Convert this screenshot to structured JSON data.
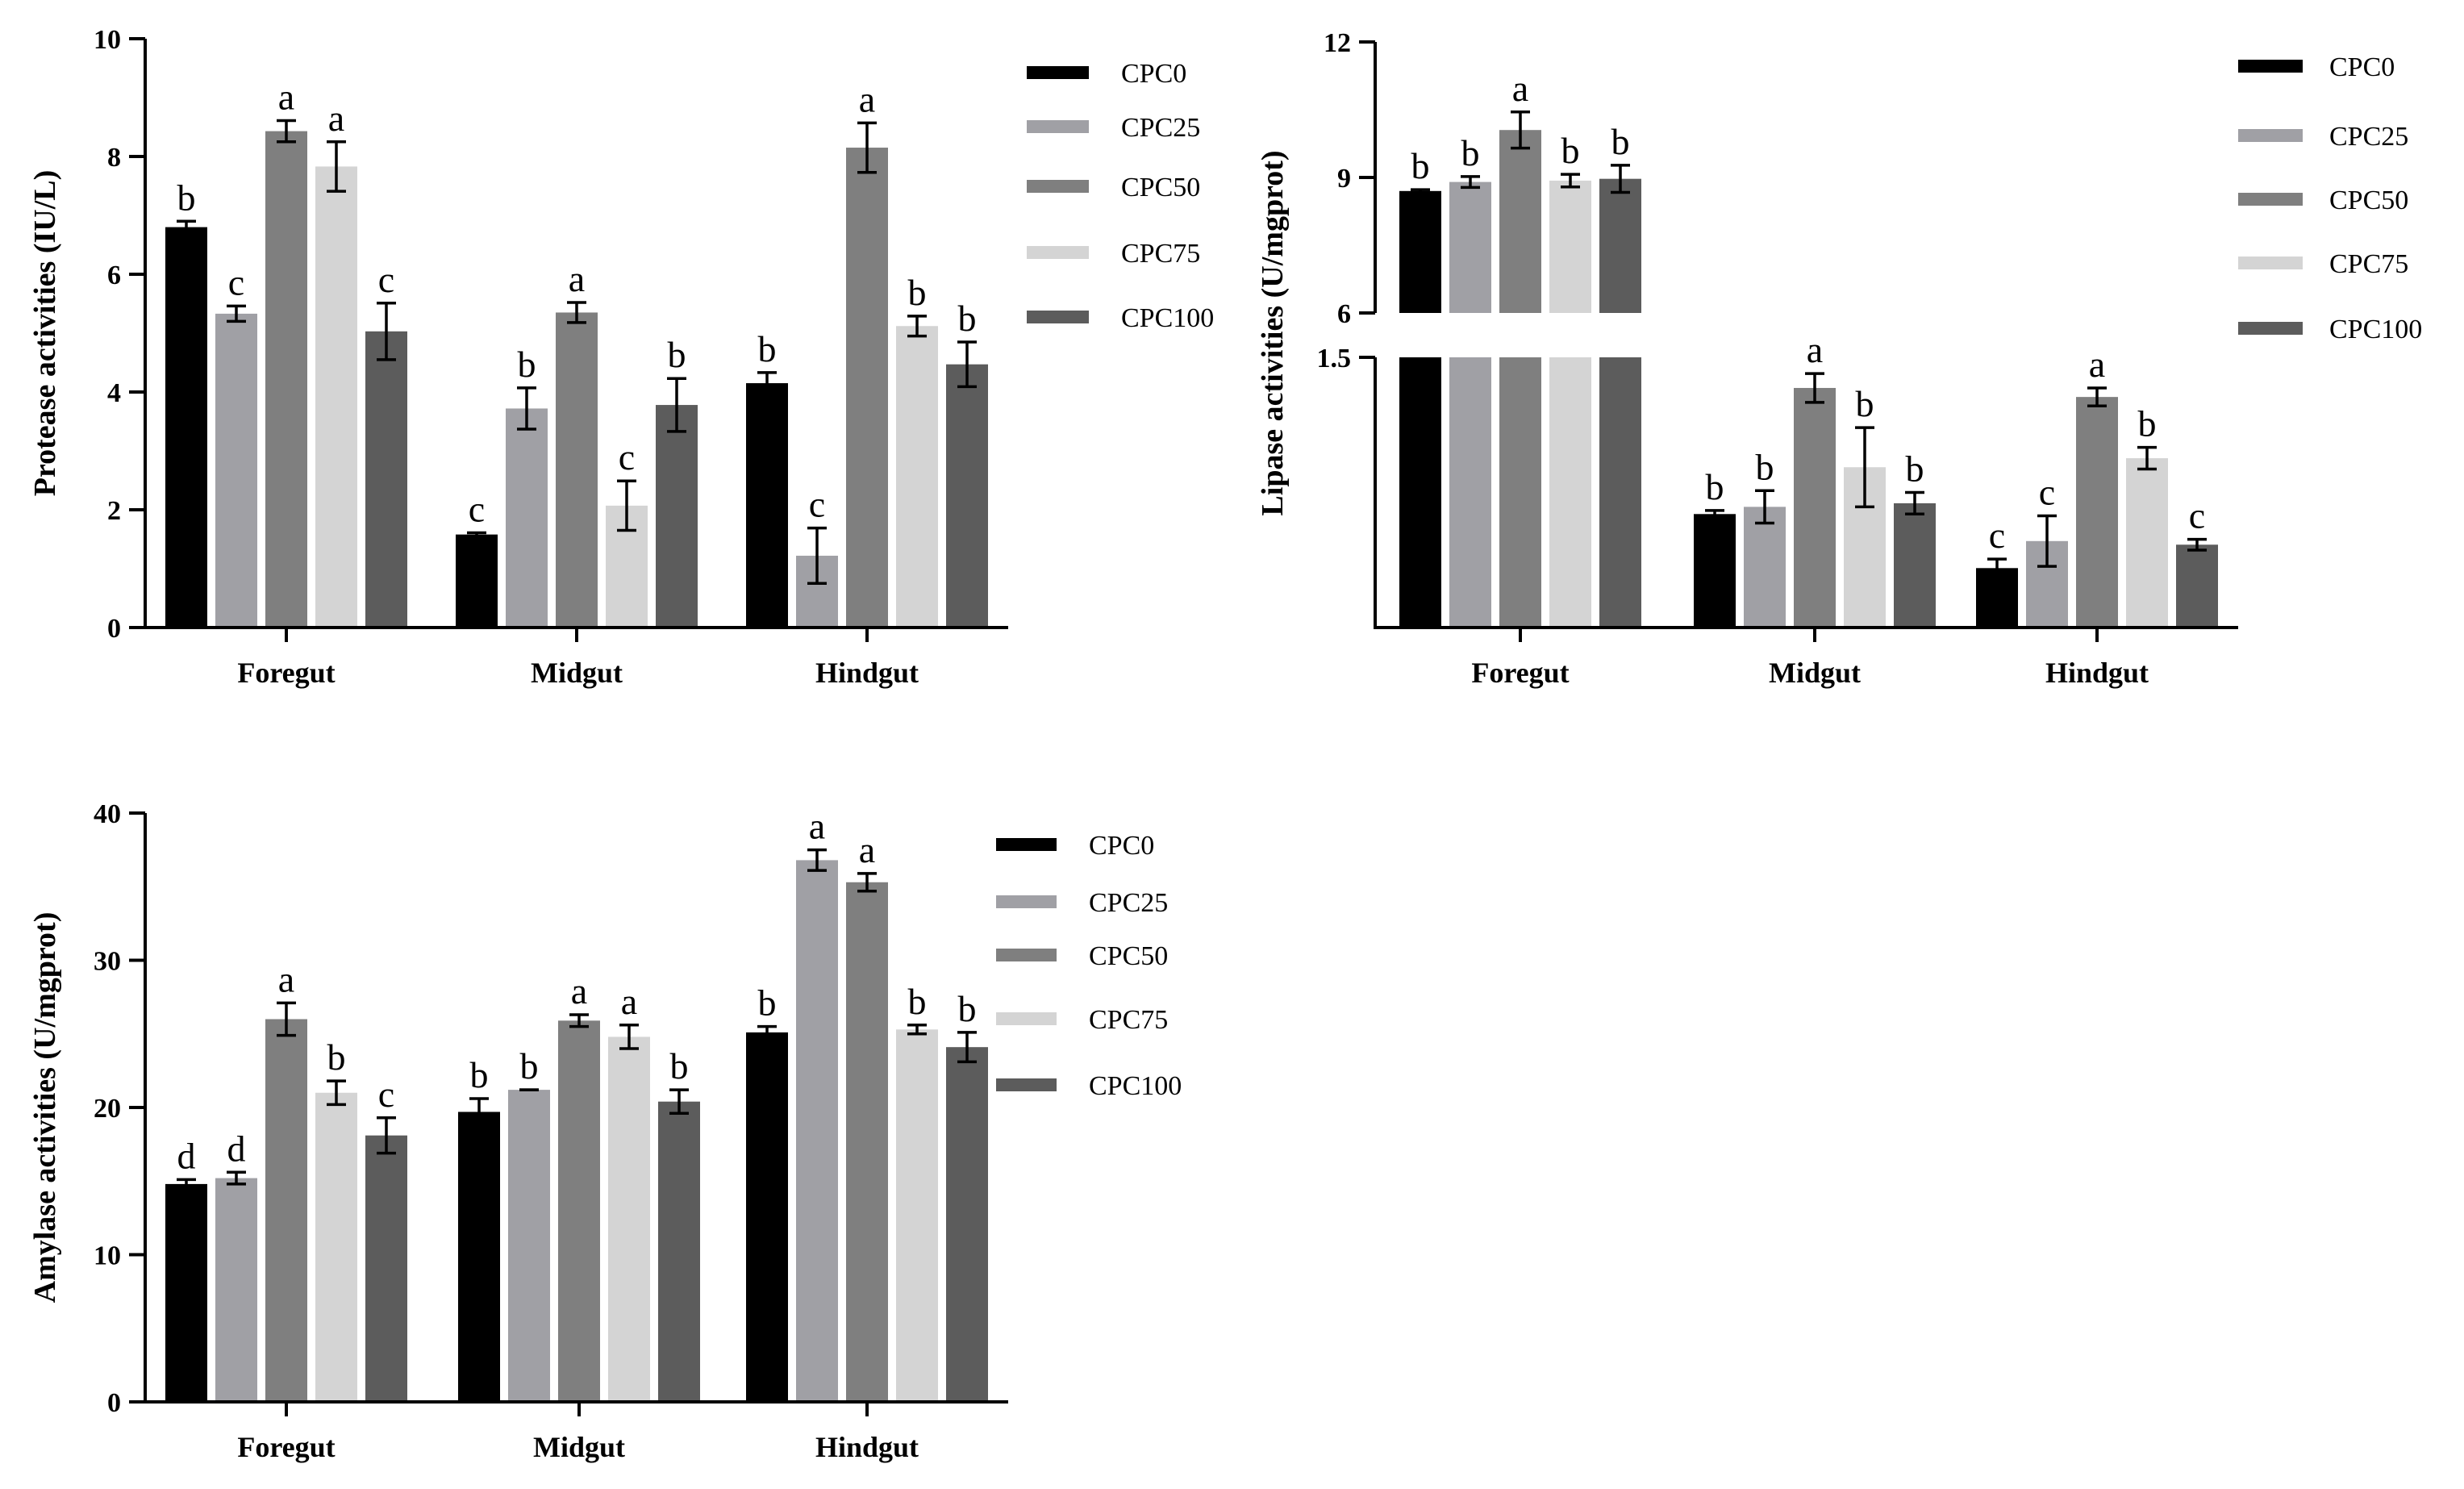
{
  "colors": {
    "CPC0": "#000000",
    "CPC25": "#a0a0a5",
    "CPC50": "#7f7f7f",
    "CPC75": "#d4d4d4",
    "CPC100": "#5c5c5c"
  },
  "chart_data": [
    {
      "type": "bar",
      "ylabel": "Protease activities (IU/L)",
      "categories": [
        "Foregut",
        "Midgut",
        "Hindgut"
      ],
      "ylim": [
        0,
        10
      ],
      "yticks": [
        "0",
        "2",
        "4",
        "6",
        "8",
        "10"
      ],
      "legend": [
        "CPC0",
        "CPC25",
        "CPC50",
        "CPC75",
        "CPC100"
      ],
      "series": [
        {
          "name": "CPC0",
          "values": [
            6.8,
            1.58,
            4.15
          ],
          "errors": [
            0.1,
            0.03,
            0.18
          ],
          "labels": [
            "b",
            "c",
            "b"
          ]
        },
        {
          "name": "CPC25",
          "values": [
            5.33,
            3.72,
            1.22
          ],
          "errors": [
            0.13,
            0.35,
            0.47
          ],
          "labels": [
            "c",
            "b",
            "c"
          ]
        },
        {
          "name": "CPC50",
          "values": [
            8.43,
            5.35,
            8.15
          ],
          "errors": [
            0.18,
            0.17,
            0.42
          ],
          "labels": [
            "a",
            "a",
            "a"
          ]
        },
        {
          "name": "CPC75",
          "values": [
            7.83,
            2.07,
            5.12
          ],
          "errors": [
            0.42,
            0.42,
            0.17
          ],
          "labels": [
            "a",
            "c",
            "b"
          ]
        },
        {
          "name": "CPC100",
          "values": [
            5.03,
            3.78,
            4.47
          ],
          "errors": [
            0.48,
            0.45,
            0.38
          ],
          "labels": [
            "c",
            "b",
            "b"
          ]
        }
      ]
    },
    {
      "type": "bar",
      "ylabel": "Lipase activities (U/mgprot)",
      "categories": [
        "Foregut",
        "Midgut",
        "Hindgut"
      ],
      "axis_break": {
        "lower_max": 1.5,
        "upper_min": 6
      },
      "ylim": [
        0,
        12
      ],
      "yticks": [
        "1.5",
        "6",
        "9",
        "12"
      ],
      "legend": [
        "CPC0",
        "CPC25",
        "CPC50",
        "CPC75",
        "CPC100"
      ],
      "series": [
        {
          "name": "CPC0",
          "values": [
            8.7,
            0.63,
            0.33
          ],
          "errors": [
            0.03,
            0.02,
            0.05
          ],
          "labels": [
            "b",
            "b",
            "c"
          ]
        },
        {
          "name": "CPC25",
          "values": [
            8.9,
            0.67,
            0.48
          ],
          "errors": [
            0.12,
            0.09,
            0.14
          ],
          "labels": [
            "b",
            "b",
            "c"
          ]
        },
        {
          "name": "CPC50",
          "values": [
            10.05,
            1.33,
            1.28
          ],
          "errors": [
            0.4,
            0.08,
            0.05
          ],
          "labels": [
            "a",
            "a",
            "a"
          ]
        },
        {
          "name": "CPC75",
          "values": [
            8.93,
            0.89,
            0.94
          ],
          "errors": [
            0.14,
            0.22,
            0.06
          ],
          "labels": [
            "b",
            "b",
            "b"
          ]
        },
        {
          "name": "CPC100",
          "values": [
            8.97,
            0.69,
            0.46
          ],
          "errors": [
            0.3,
            0.06,
            0.03
          ],
          "labels": [
            "b",
            "b",
            "c"
          ]
        }
      ]
    },
    {
      "type": "bar",
      "ylabel": "Amylase activities (U/mgprot)",
      "categories": [
        "Foregut",
        "Midgut",
        "Hindgut"
      ],
      "ylim": [
        0,
        40
      ],
      "yticks": [
        "0",
        "10",
        "20",
        "30",
        "40"
      ],
      "legend": [
        "CPC0",
        "CPC25",
        "CPC50",
        "CPC75",
        "CPC100"
      ],
      "series": [
        {
          "name": "CPC0",
          "values": [
            14.8,
            19.7,
            25.1
          ],
          "errors": [
            0.3,
            0.9,
            0.4
          ],
          "labels": [
            "d",
            "b",
            "b"
          ]
        },
        {
          "name": "CPC25",
          "values": [
            15.2,
            21.2,
            36.8
          ],
          "errors": [
            0.4,
            0.0,
            0.7
          ],
          "labels": [
            "d",
            "b",
            "a"
          ]
        },
        {
          "name": "CPC50",
          "values": [
            26.0,
            25.9,
            35.3
          ],
          "errors": [
            1.1,
            0.4,
            0.6
          ],
          "labels": [
            "a",
            "a",
            "a"
          ]
        },
        {
          "name": "CPC75",
          "values": [
            21.0,
            24.8,
            25.3
          ],
          "errors": [
            0.8,
            0.8,
            0.3
          ],
          "labels": [
            "b",
            "a",
            "b"
          ]
        },
        {
          "name": "CPC100",
          "values": [
            18.1,
            20.4,
            24.1
          ],
          "errors": [
            1.2,
            0.8,
            1.0
          ],
          "labels": [
            "c",
            "b",
            "b"
          ]
        }
      ]
    }
  ]
}
